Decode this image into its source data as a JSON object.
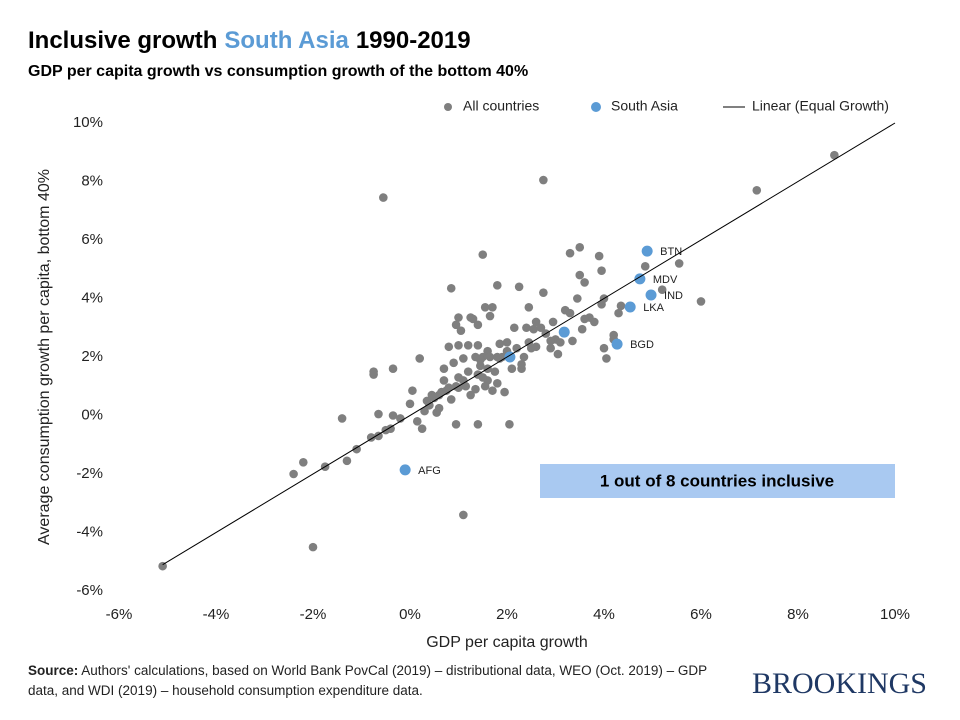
{
  "chart_data": {
    "type": "scatter",
    "title": "Inclusive growth",
    "title_highlight": "South Asia",
    "title_end": "1990-2019",
    "subtitle": "GDP per capita growth vs consumption growth of the bottom 40%",
    "x_label": "GDP per capita growth",
    "y_label": "Average consumption growth per capita, bottom 40%",
    "annotation": "1 out of 8 countries inclusive",
    "source_label": "Source:",
    "source": "Authors' calculations, based on World Bank PovCal (2019) – distributional data, WEO (Oct. 2019) – GDP data, and WDI (2019) – household consumption expenditure data.",
    "logo": "BROOKINGS",
    "xlim": [
      -6,
      10
    ],
    "ylim": [
      -6,
      10
    ],
    "xticks": [
      {
        "value": -6,
        "label": "-6%"
      },
      {
        "value": -4,
        "label": "-4%"
      },
      {
        "value": -2,
        "label": "-2%"
      },
      {
        "value": 0,
        "label": "0%"
      },
      {
        "value": 2,
        "label": "2%"
      },
      {
        "value": 4,
        "label": "4%"
      },
      {
        "value": 6,
        "label": "6%"
      },
      {
        "value": 8,
        "label": "8%"
      },
      {
        "value": 10,
        "label": "10%"
      }
    ],
    "yticks": [
      {
        "value": -6,
        "label": "-6%"
      },
      {
        "value": -4,
        "label": "-4%"
      },
      {
        "value": -2,
        "label": "-2%"
      },
      {
        "value": 0,
        "label": "0%"
      },
      {
        "value": 2,
        "label": "2%"
      },
      {
        "value": 4,
        "label": "4%"
      },
      {
        "value": 6,
        "label": "6%"
      },
      {
        "value": 8,
        "label": "8%"
      },
      {
        "value": 10,
        "label": "10%"
      }
    ],
    "grid": false,
    "series": [
      {
        "name": "All countries",
        "color": "#7f7f7f",
        "kind": "points",
        "x": [
          2.75,
          -0.55,
          7.15,
          8.75,
          6.0,
          5.55,
          -2.0,
          -5.1,
          1.1,
          -2.4,
          -2.2,
          -1.75,
          -1.3,
          -1.1,
          -1.4,
          -0.8,
          -0.65,
          -0.5,
          -0.4,
          -0.35,
          -0.2,
          -0.75,
          -0.75,
          -0.65,
          -0.35,
          0.0,
          0.05,
          0.15,
          0.25,
          0.2,
          0.3,
          0.35,
          0.4,
          0.45,
          0.5,
          0.55,
          0.6,
          0.65,
          0.7,
          0.75,
          0.8,
          0.85,
          0.9,
          0.95,
          1.0,
          0.8,
          0.85,
          0.95,
          1.0,
          1.05,
          1.1,
          1.2,
          1.25,
          1.3,
          1.35,
          1.4,
          1.4,
          1.4,
          1.45,
          1.5,
          1.5,
          1.55,
          1.6,
          1.6,
          1.65,
          1.7,
          1.75,
          1.8,
          1.8,
          1.85,
          1.9,
          1.95,
          2.0,
          2.05,
          2.1,
          2.15,
          2.2,
          2.25,
          2.3,
          2.35,
          2.4,
          2.45,
          2.5,
          2.55,
          2.6,
          2.7,
          2.75,
          2.8,
          2.9,
          2.95,
          3.0,
          3.05,
          3.1,
          3.2,
          3.3,
          3.3,
          3.45,
          3.5,
          3.5,
          3.55,
          3.6,
          3.7,
          3.8,
          3.9,
          3.95,
          3.95,
          4.0,
          4.0,
          4.05,
          4.2,
          4.35,
          4.85,
          5.2,
          4.2,
          4.3,
          1.1,
          1.25,
          1.0,
          1.4,
          1.55,
          1.45,
          1.6,
          1.35,
          1.2,
          1.15,
          0.7,
          0.6,
          1.5,
          1.7,
          2.3,
          2.0,
          1.85,
          3.6,
          2.45,
          2.6,
          2.9,
          3.35,
          0.95,
          1.65,
          1.0,
          1.8
        ],
        "y": [
          8.05,
          7.45,
          7.7,
          8.9,
          3.9,
          5.2,
          -4.5,
          -5.15,
          -3.4,
          -2.0,
          -1.6,
          -1.75,
          -1.55,
          -1.15,
          -0.1,
          -0.75,
          -0.7,
          -0.5,
          -0.45,
          0.0,
          -0.1,
          1.4,
          1.5,
          0.05,
          1.6,
          0.4,
          0.85,
          -0.2,
          -0.45,
          1.95,
          0.15,
          0.5,
          0.35,
          0.7,
          0.6,
          0.1,
          0.7,
          0.8,
          1.2,
          0.85,
          0.95,
          0.55,
          1.8,
          -0.3,
          0.95,
          2.35,
          4.35,
          3.1,
          2.4,
          2.9,
          1.2,
          2.4,
          3.35,
          3.3,
          0.9,
          2.4,
          3.1,
          -0.3,
          1.7,
          2.0,
          5.5,
          3.7,
          1.2,
          2.2,
          3.4,
          3.7,
          1.5,
          1.1,
          4.45,
          1.95,
          2.0,
          0.8,
          2.5,
          -0.3,
          1.6,
          3.0,
          2.3,
          4.4,
          1.6,
          2.0,
          3.0,
          3.7,
          2.3,
          2.95,
          3.2,
          3.0,
          4.2,
          2.8,
          2.3,
          3.2,
          2.6,
          2.1,
          2.5,
          3.6,
          3.5,
          5.55,
          4.0,
          4.8,
          5.75,
          2.95,
          4.55,
          3.35,
          3.2,
          5.45,
          4.95,
          3.8,
          2.3,
          4.0,
          1.95,
          2.75,
          3.75,
          5.1,
          4.3,
          2.6,
          3.5,
          1.95,
          0.7,
          1.3,
          1.4,
          1.0,
          1.9,
          1.6,
          2.0,
          1.5,
          1.0,
          1.6,
          0.25,
          1.3,
          0.85,
          1.75,
          2.2,
          2.45,
          3.3,
          2.5,
          2.35,
          2.55,
          2.55,
          1.0,
          2.0,
          3.35,
          2.0
        ]
      },
      {
        "name": "South Asia",
        "color": "#5b9bd5",
        "kind": "points",
        "x": [
          4.89,
          4.74,
          4.97,
          4.54,
          4.27,
          -0.1,
          3.18,
          2.06
        ],
        "y": [
          5.62,
          4.67,
          4.12,
          3.71,
          2.44,
          -1.86,
          2.85,
          2.0
        ],
        "labels": [
          "BTN",
          "MDV",
          "IND",
          "LKA",
          "BGD",
          "AFG",
          null,
          null
        ]
      },
      {
        "name": "Linear (Equal Growth)",
        "color": "#000000",
        "kind": "line",
        "x": [
          -5.1,
          10
        ],
        "y": [
          -5.1,
          10
        ]
      }
    ]
  }
}
